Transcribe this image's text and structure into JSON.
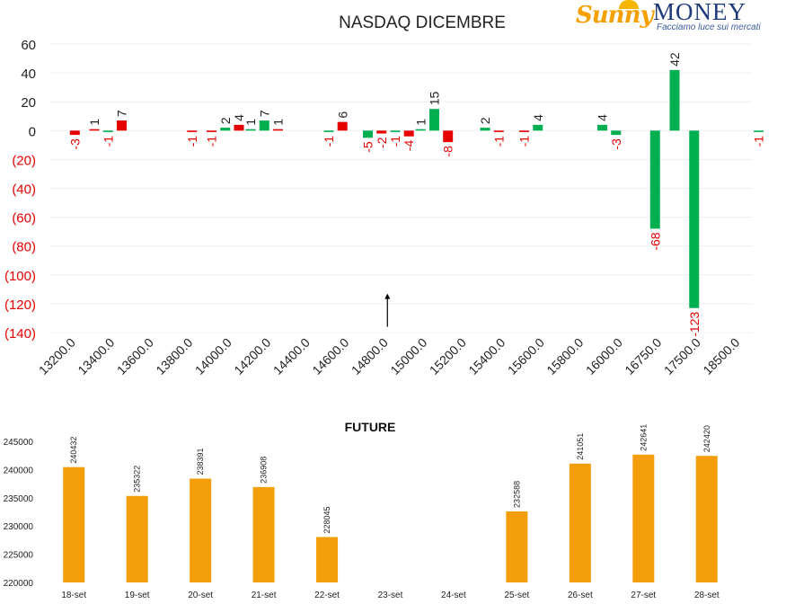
{
  "logo": {
    "brand_part1": "Sunny",
    "brand_part2": "MONEY",
    "tagline": "Facciamo luce sui mercati"
  },
  "colors": {
    "positive": "#00b050",
    "negative": "#e60000",
    "negative_label": "#e60000",
    "future_bar": "#f59e0b",
    "text": "#222222"
  },
  "chart_data": [
    {
      "type": "bar",
      "title": "NASDAQ DICEMBRE",
      "xlabel": "",
      "ylabel": "",
      "ylim": [
        -140,
        60
      ],
      "y_ticks": [
        60,
        40,
        20,
        0,
        -20,
        -40,
        -60,
        -80,
        -100,
        -120,
        -140
      ],
      "y_tick_labels": [
        "60",
        "40",
        "20",
        "0",
        "(20)",
        "(40)",
        "(60)",
        "(80)",
        "(100)",
        "(120)",
        "(140)"
      ],
      "categories": [
        "13200.0",
        "13400.0",
        "13600.0",
        "13800.0",
        "14000.0",
        "14200.0",
        "14400.0",
        "14600.0",
        "14800.0",
        "15000.0",
        "15200.0",
        "15400.0",
        "15600.0",
        "15800.0",
        "16000.0",
        "16750.0",
        "17500.0",
        "18500.0"
      ],
      "bars": [
        {
          "slot": 0.15,
          "value": -3,
          "label": "-3"
        },
        {
          "slot": 0.65,
          "value": 1,
          "label": "1"
        },
        {
          "slot": 1.0,
          "value": -1,
          "label": "-1"
        },
        {
          "slot": 1.35,
          "value": 7,
          "label": "7"
        },
        {
          "slot": 3.15,
          "value": -1,
          "label": "-1"
        },
        {
          "slot": 3.65,
          "value": -1,
          "label": "-1"
        },
        {
          "slot": 4.0,
          "value": 2,
          "label": "2"
        },
        {
          "slot": 4.35,
          "value": 4,
          "label": "4"
        },
        {
          "slot": 4.65,
          "value": 1,
          "label": "1"
        },
        {
          "slot": 5.0,
          "value": 7,
          "label": "7"
        },
        {
          "slot": 5.35,
          "value": 1,
          "label": "1"
        },
        {
          "slot": 6.65,
          "value": -1,
          "label": "-1"
        },
        {
          "slot": 7.0,
          "value": 6,
          "label": "6"
        },
        {
          "slot": 7.65,
          "value": -5,
          "label": "-5"
        },
        {
          "slot": 8.0,
          "value": -2,
          "label": "-2"
        },
        {
          "slot": 8.35,
          "value": -1,
          "label": "-1"
        },
        {
          "slot": 8.7,
          "value": -4,
          "label": "-4"
        },
        {
          "slot": 9.0,
          "value": 1,
          "label": "1"
        },
        {
          "slot": 9.35,
          "value": 15,
          "label": "15"
        },
        {
          "slot": 9.7,
          "value": -8,
          "label": "-8"
        },
        {
          "slot": 10.65,
          "value": 2,
          "label": "2"
        },
        {
          "slot": 11.0,
          "value": -1,
          "label": "-1"
        },
        {
          "slot": 11.65,
          "value": -1,
          "label": "-1"
        },
        {
          "slot": 12.0,
          "value": 4,
          "label": "4"
        },
        {
          "slot": 13.65,
          "value": 4,
          "label": "4"
        },
        {
          "slot": 14.0,
          "value": -3,
          "label": "-3"
        },
        {
          "slot": 15.0,
          "value": -68,
          "label": "-68"
        },
        {
          "slot": 15.5,
          "value": 42,
          "label": "42"
        },
        {
          "slot": 16.0,
          "value": -123,
          "label": "-123"
        },
        {
          "slot": 17.65,
          "value": -1,
          "label": "-1"
        }
      ],
      "bar_colors": [
        "r",
        "r",
        "g",
        "r",
        "r",
        "r",
        "g",
        "r",
        "g",
        "g",
        "r",
        "g",
        "r",
        "g",
        "r",
        "g",
        "r",
        "g",
        "g",
        "r",
        "g",
        "r",
        "r",
        "g",
        "g",
        "g",
        "g",
        "g",
        "g",
        "g"
      ],
      "annotation_arrow": {
        "slot": 8.15,
        "from_value": -136,
        "to_value": -113
      }
    },
    {
      "type": "bar",
      "title": "FUTURE",
      "xlabel": "",
      "ylabel": "",
      "ylim": [
        220000,
        245000
      ],
      "y_ticks": [
        245000,
        240000,
        235000,
        230000,
        225000,
        220000
      ],
      "categories": [
        "18-set",
        "19-set",
        "20-set",
        "21-set",
        "22-set",
        "23-set",
        "24-set",
        "25-set",
        "26-set",
        "27-set",
        "28-set"
      ],
      "values": [
        240432,
        235322,
        238391,
        236908,
        228045,
        null,
        null,
        232588,
        241051,
        242641,
        242420
      ]
    }
  ]
}
